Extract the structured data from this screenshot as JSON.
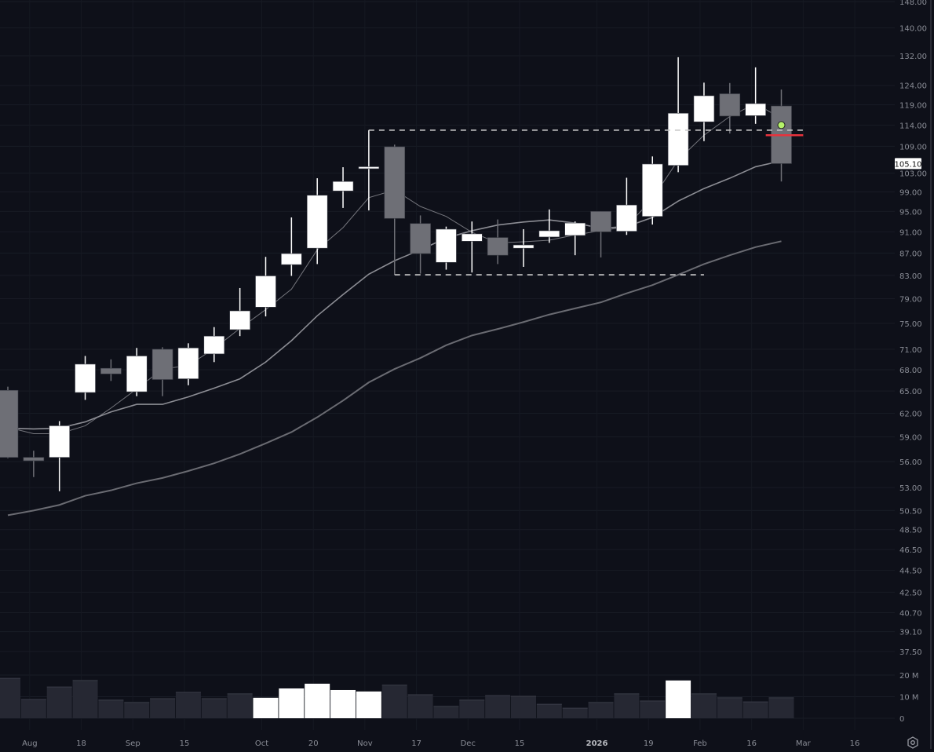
{
  "chart_data": {
    "type": "candlestick",
    "interval": "weekly",
    "price_scale": "log",
    "grid": true,
    "colors": {
      "background": "#0e1019",
      "up": "#ffffff",
      "down": "#6e6f76",
      "volume": "#262833",
      "volume_highlight": "#ffffff",
      "stop_line": "#e8323c",
      "marker": "#b5f26a",
      "range_box": "#c8c8c8"
    },
    "y_ticks": [
      "148.00",
      "140.00",
      "132.00",
      "124.00",
      "119.00",
      "114.00",
      "109.00",
      "103.00",
      "99.00",
      "95.00",
      "91.00",
      "87.00",
      "83.00",
      "79.00",
      "75.00",
      "71.00",
      "68.00",
      "65.00",
      "62.00",
      "59.00",
      "56.00",
      "53.00",
      "50.50",
      "48.50",
      "46.50",
      "44.50",
      "42.50",
      "40.70",
      "39.10",
      "37.50"
    ],
    "volume_ticks": [
      {
        "label": "20 M",
        "value": 20
      },
      {
        "label": "10 M",
        "value": 10
      },
      {
        "label": "0",
        "value": 0
      }
    ],
    "x_ticks": [
      {
        "label": "Aug",
        "date": "2025-08-04"
      },
      {
        "label": "18",
        "date": "2025-08-18"
      },
      {
        "label": "Sep",
        "date": "2025-09-01"
      },
      {
        "label": "15",
        "date": "2025-09-15"
      },
      {
        "label": "Oct",
        "date": "2025-10-06"
      },
      {
        "label": "20",
        "date": "2025-10-20"
      },
      {
        "label": "Nov",
        "date": "2025-11-03"
      },
      {
        "label": "17",
        "date": "2025-11-17"
      },
      {
        "label": "Dec",
        "date": "2025-12-01"
      },
      {
        "label": "15",
        "date": "2025-12-15"
      },
      {
        "label": "2026",
        "date": "2026-01-05",
        "bold": true
      },
      {
        "label": "19",
        "date": "2026-01-19"
      },
      {
        "label": "Feb",
        "date": "2026-02-02"
      },
      {
        "label": "16",
        "date": "2026-02-16"
      },
      {
        "label": "Mar",
        "date": "2026-03-02"
      },
      {
        "label": "16",
        "date": "2026-03-16"
      }
    ],
    "last_price": "105.10",
    "candles": [
      {
        "date": "2025-07-28",
        "o": 65.1,
        "h": 65.6,
        "l": 56.4,
        "c": 56.5,
        "vol": 18.5
      },
      {
        "date": "2025-08-04",
        "o": 56.5,
        "h": 57.3,
        "l": 54.2,
        "c": 56.1,
        "vol": 8.7
      },
      {
        "date": "2025-08-11",
        "o": 56.5,
        "h": 61.0,
        "l": 52.6,
        "c": 60.4,
        "vol": 14.5
      },
      {
        "date": "2025-08-18",
        "o": 64.8,
        "h": 70.0,
        "l": 63.8,
        "c": 68.8,
        "vol": 17.5
      },
      {
        "date": "2025-08-25",
        "o": 68.2,
        "h": 69.5,
        "l": 66.4,
        "c": 67.4,
        "vol": 8.4
      },
      {
        "date": "2025-09-01",
        "o": 64.9,
        "h": 71.2,
        "l": 64.3,
        "c": 70.0,
        "vol": 7.3
      },
      {
        "date": "2025-09-08",
        "o": 71.0,
        "h": 71.3,
        "l": 64.3,
        "c": 66.6,
        "vol": 9.1
      },
      {
        "date": "2025-09-15",
        "o": 66.7,
        "h": 71.9,
        "l": 65.8,
        "c": 71.2,
        "vol": 12.0
      },
      {
        "date": "2025-09-22",
        "o": 70.3,
        "h": 74.4,
        "l": 69.1,
        "c": 73.0,
        "vol": 9.1
      },
      {
        "date": "2025-09-29",
        "o": 74.0,
        "h": 80.8,
        "l": 73.0,
        "c": 77.0,
        "vol": 11.3
      },
      {
        "date": "2025-10-06",
        "o": 77.6,
        "h": 86.3,
        "l": 76.1,
        "c": 82.9,
        "vol": 9.5,
        "vol_highlight": true
      },
      {
        "date": "2025-10-13",
        "o": 84.9,
        "h": 93.8,
        "l": 82.9,
        "c": 86.9,
        "vol": 13.8,
        "vol_highlight": true
      },
      {
        "date": "2025-10-20",
        "o": 87.9,
        "h": 101.9,
        "l": 85.0,
        "c": 98.3,
        "vol": 16.0,
        "vol_highlight": true
      },
      {
        "date": "2025-10-27",
        "o": 99.2,
        "h": 104.3,
        "l": 95.7,
        "c": 101.2,
        "vol": 13.1,
        "vol_highlight": true
      },
      {
        "date": "2025-11-03",
        "o": 104.0,
        "h": 112.8,
        "l": 95.2,
        "c": 104.4,
        "vol": 12.4,
        "vol_highlight": true
      },
      {
        "date": "2025-11-10",
        "o": 108.9,
        "h": 109.4,
        "l": 83.1,
        "c": 93.6,
        "vol": 15.3
      },
      {
        "date": "2025-11-17",
        "o": 92.6,
        "h": 94.2,
        "l": 83.3,
        "c": 86.9,
        "vol": 10.9
      },
      {
        "date": "2025-11-24",
        "o": 85.3,
        "h": 92.0,
        "l": 84.0,
        "c": 91.5,
        "vol": 5.5
      },
      {
        "date": "2025-12-01",
        "o": 89.2,
        "h": 93.0,
        "l": 83.5,
        "c": 90.6,
        "vol": 8.4
      },
      {
        "date": "2025-12-08",
        "o": 89.9,
        "h": 93.4,
        "l": 85.0,
        "c": 86.6,
        "vol": 10.5
      },
      {
        "date": "2025-12-15",
        "o": 87.9,
        "h": 91.5,
        "l": 84.5,
        "c": 88.5,
        "vol": 10.2
      },
      {
        "date": "2025-12-22",
        "o": 90.0,
        "h": 95.4,
        "l": 88.9,
        "c": 91.2,
        "vol": 6.5
      },
      {
        "date": "2025-12-29",
        "o": 90.3,
        "h": 93.0,
        "l": 86.6,
        "c": 92.7,
        "vol": 4.7
      },
      {
        "date": "2026-01-05",
        "o": 95.0,
        "h": 95.0,
        "l": 86.2,
        "c": 91.0,
        "vol": 7.3
      },
      {
        "date": "2026-01-12",
        "o": 91.1,
        "h": 102.0,
        "l": 90.4,
        "c": 96.3,
        "vol": 11.3
      },
      {
        "date": "2026-01-19",
        "o": 94.0,
        "h": 106.7,
        "l": 92.4,
        "c": 105.0,
        "vol": 8.0
      },
      {
        "date": "2026-01-26",
        "o": 104.7,
        "h": 131.6,
        "l": 103.2,
        "c": 116.9,
        "vol": 17.5,
        "vol_highlight": true
      },
      {
        "date": "2026-02-02",
        "o": 114.8,
        "h": 124.7,
        "l": 110.2,
        "c": 121.3,
        "vol": 11.3
      },
      {
        "date": "2026-02-09",
        "o": 121.8,
        "h": 124.6,
        "l": 112.0,
        "c": 116.2,
        "vol": 9.5
      },
      {
        "date": "2026-02-16",
        "o": 116.3,
        "h": 128.8,
        "l": 114.3,
        "c": 119.3,
        "vol": 7.6
      },
      {
        "date": "2026-02-23",
        "o": 118.7,
        "h": 122.9,
        "l": 101.2,
        "c": 105.1,
        "vol": 9.5
      }
    ],
    "moving_averages": [
      {
        "color": "#74757c",
        "width": 1,
        "values": [
          60.2,
          59.4,
          59.4,
          60.4,
          62.7,
          65.3,
          68.1,
          68.6,
          71.1,
          74.2,
          77.2,
          80.6,
          87.6,
          91.8,
          97.8,
          99.4,
          96.0,
          94.0,
          90.9,
          88.9,
          89.1,
          89.4,
          90.4,
          91.2,
          92.0,
          97.6,
          105.9,
          111.6,
          116.1,
          119.3,
          115.6
        ]
      },
      {
        "color": "#8c8d94",
        "width": 1.6,
        "values": [
          60.1,
          60.0,
          60.1,
          60.9,
          62.2,
          63.2,
          63.2,
          64.2,
          65.4,
          66.7,
          69.1,
          72.3,
          76.2,
          79.7,
          83.2,
          85.6,
          87.6,
          89.8,
          91.2,
          92.3,
          92.9,
          93.3,
          92.7,
          91.7,
          92.0,
          93.8,
          97.1,
          99.7,
          101.9,
          104.4,
          105.7
        ]
      },
      {
        "color": "#6a6b72",
        "width": 2,
        "values": [
          50.0,
          50.5,
          51.1,
          52.1,
          52.7,
          53.5,
          54.1,
          54.9,
          55.8,
          56.9,
          58.2,
          59.6,
          61.5,
          63.7,
          66.2,
          68.1,
          69.7,
          71.6,
          73.1,
          74.1,
          75.2,
          76.4,
          77.4,
          78.4,
          79.9,
          81.3,
          83.1,
          85.0,
          86.6,
          88.1,
          89.2
        ]
      }
    ],
    "range_box": {
      "top": {
        "price": 112.8,
        "from": "2025-11-03",
        "to": "2026-03-02"
      },
      "bottom": {
        "price": 83.1,
        "from": "2025-11-10",
        "to": "2026-02-02"
      }
    },
    "stop_line": {
      "price": 111.6,
      "from": "2026-02-16",
      "to": "2026-03-02"
    },
    "marker": {
      "price": 114.0,
      "date": "2026-02-23"
    }
  },
  "icons": {
    "settings": "gear-icon"
  }
}
